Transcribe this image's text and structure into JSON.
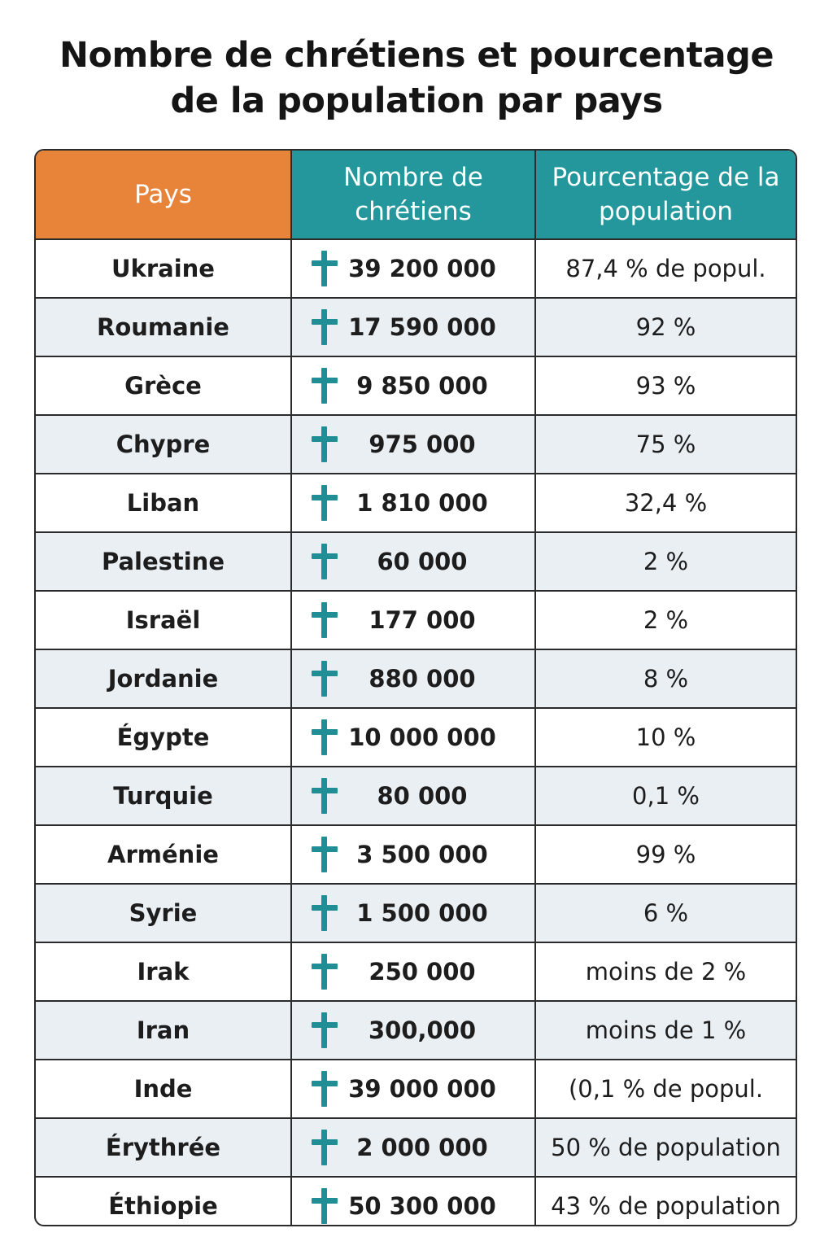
{
  "title": {
    "line1": "Nombre de chrétiens et pourcentage",
    "line2": "de la population par pays"
  },
  "colors": {
    "header_pays": "#e8833a",
    "header_teal": "#23979b",
    "cross": "#1f8f95",
    "row_alt": "#eaeff4"
  },
  "icons": {
    "row_marker": "cross-icon"
  },
  "chart_data": {
    "type": "table",
    "title": "Nombre de chrétiens et pourcentage de la population par pays",
    "columns": [
      "Pays",
      "Nombre de chrétiens",
      "Pourcentage de la population"
    ],
    "rows": [
      {
        "pays": "Ukraine",
        "nombre": "39 200 000",
        "pourcentage": "87,4 % de popul."
      },
      {
        "pays": "Roumanie",
        "nombre": "17 590 000",
        "pourcentage": "92 %"
      },
      {
        "pays": "Grèce",
        "nombre": "9 850 000",
        "pourcentage": "93 %"
      },
      {
        "pays": "Chypre",
        "nombre": "975 000",
        "pourcentage": "75 %"
      },
      {
        "pays": "Liban",
        "nombre": "1 810 000",
        "pourcentage": "32,4 %"
      },
      {
        "pays": "Palestine",
        "nombre": "60 000",
        "pourcentage": "2 %"
      },
      {
        "pays": "Israël",
        "nombre": "177 000",
        "pourcentage": "2 %"
      },
      {
        "pays": "Jordanie",
        "nombre": "880 000",
        "pourcentage": "8 %"
      },
      {
        "pays": "Égypte",
        "nombre": "10 000 000",
        "pourcentage": "10 %"
      },
      {
        "pays": "Turquie",
        "nombre": "80 000",
        "pourcentage": "0,1 %"
      },
      {
        "pays": "Arménie",
        "nombre": "3 500 000",
        "pourcentage": "99 %"
      },
      {
        "pays": "Syrie",
        "nombre": "1 500 000",
        "pourcentage": "6 %"
      },
      {
        "pays": "Irak",
        "nombre": "250 000",
        "pourcentage": "moins de 2 %"
      },
      {
        "pays": "Iran",
        "nombre": "300,000",
        "pourcentage": "moins de 1 %"
      },
      {
        "pays": "Inde",
        "nombre": "39 000 000",
        "pourcentage": "(0,1 % de popul."
      },
      {
        "pays": "Érythrée",
        "nombre": "2 000 000",
        "pourcentage": "50 % de population"
      },
      {
        "pays": "Éthiopie",
        "nombre": "50 300 000",
        "pourcentage": "43 % de population"
      }
    ]
  }
}
